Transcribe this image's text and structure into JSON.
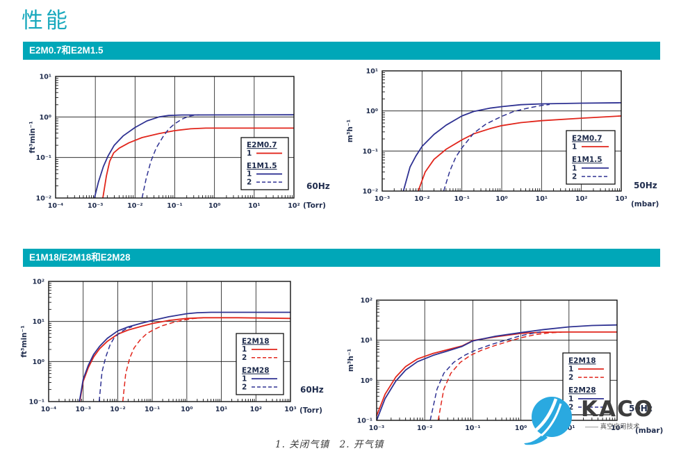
{
  "page_title": "性能",
  "sections": [
    {
      "banner": "E2M0.7和E2M1.5"
    },
    {
      "banner": "E1M18/E2M18和E2M28"
    }
  ],
  "footnote": "1. 关闭气镇　2. 开气镇",
  "logo": {
    "name": "KACO",
    "tagline": "—— 真空应用技术"
  },
  "colors": {
    "accent": "#00a7b8",
    "title": "#1aa9bd",
    "curve_red": "#e1251b",
    "curve_blue": "#2e3192",
    "axis_text": "#1f2c4d"
  },
  "chart_data": [
    {
      "type": "line",
      "id": "e2m07-e1m15-60hz",
      "name": "E2M0.7 / E1M1.5 pumping speed, 60Hz",
      "ylabel": "ft³min⁻¹",
      "x_unit": "(Torr)",
      "freq": "60Hz",
      "x_log_range": [
        -4,
        2
      ],
      "y_log_range": [
        -2,
        1
      ],
      "grid": true,
      "x_tick_labels": [
        "10⁻⁴",
        "10⁻³",
        "10⁻²",
        "10⁻¹",
        "10⁰",
        "10¹",
        "10²"
      ],
      "y_tick_labels": [
        "10⁻²",
        "10⁻¹",
        "10⁰",
        "10¹"
      ],
      "legend": {
        "groups": [
          {
            "title": "E2M0.7",
            "items": [
              {
                "label": "1",
                "series": 0
              }
            ]
          },
          {
            "title": "E1M1.5",
            "items": [
              {
                "label": "1",
                "series": 1
              },
              {
                "label": "2",
                "series": 2
              }
            ]
          }
        ]
      },
      "series": [
        {
          "name": "E2M0.7-1",
          "color": "#e1251b",
          "dashed": false,
          "points": [
            [
              0.00155,
              0.01
            ],
            [
              0.0019,
              0.035
            ],
            [
              0.0023,
              0.08
            ],
            [
              0.0029,
              0.13
            ],
            [
              0.004,
              0.17
            ],
            [
              0.007,
              0.23
            ],
            [
              0.015,
              0.31
            ],
            [
              0.04,
              0.39
            ],
            [
              0.1,
              0.46
            ],
            [
              0.25,
              0.51
            ],
            [
              0.6,
              0.53
            ],
            [
              100,
              0.53
            ]
          ]
        },
        {
          "name": "E1M1.5-1",
          "color": "#2e3192",
          "dashed": false,
          "points": [
            [
              0.00095,
              0.01
            ],
            [
              0.0012,
              0.025
            ],
            [
              0.0016,
              0.06
            ],
            [
              0.0021,
              0.11
            ],
            [
              0.003,
              0.2
            ],
            [
              0.005,
              0.34
            ],
            [
              0.01,
              0.55
            ],
            [
              0.02,
              0.8
            ],
            [
              0.04,
              1.0
            ],
            [
              0.07,
              1.09
            ],
            [
              0.15,
              1.12
            ],
            [
              100,
              1.13
            ]
          ]
        },
        {
          "name": "E1M1.5-2",
          "color": "#2e3192",
          "dashed": true,
          "points": [
            [
              0.015,
              0.01
            ],
            [
              0.019,
              0.03
            ],
            [
              0.025,
              0.08
            ],
            [
              0.034,
              0.17
            ],
            [
              0.05,
              0.32
            ],
            [
              0.07,
              0.5
            ],
            [
              0.1,
              0.68
            ],
            [
              0.15,
              0.88
            ],
            [
              0.22,
              1.03
            ],
            [
              0.32,
              1.11
            ],
            [
              0.42,
              1.13
            ]
          ]
        }
      ]
    },
    {
      "type": "line",
      "id": "e2m07-e1m15-50hz",
      "name": "E2M0.7 / E1M1.5 pumping speed, 50Hz",
      "ylabel": "m³h⁻¹",
      "x_unit": "(mbar)",
      "freq": "50Hz",
      "x_log_range": [
        -3,
        3
      ],
      "y_log_range": [
        -2,
        1
      ],
      "grid": true,
      "x_tick_labels": [
        "10⁻³",
        "10⁻²",
        "10⁻¹",
        "10⁰",
        "10¹",
        "10²",
        "10³"
      ],
      "y_tick_labels": [
        "10⁻²",
        "10⁻¹",
        "10⁰",
        "10¹"
      ],
      "legend": {
        "groups": [
          {
            "title": "E2M0.7",
            "items": [
              {
                "label": "1",
                "series": 0
              }
            ]
          },
          {
            "title": "E1M1.5",
            "items": [
              {
                "label": "1",
                "series": 1
              },
              {
                "label": "2",
                "series": 2
              }
            ]
          }
        ]
      },
      "series": [
        {
          "name": "E2M0.7-1",
          "color": "#e1251b",
          "dashed": false,
          "points": [
            [
              0.008,
              0.01
            ],
            [
              0.012,
              0.03
            ],
            [
              0.02,
              0.062
            ],
            [
              0.04,
              0.11
            ],
            [
              0.1,
              0.19
            ],
            [
              0.2,
              0.27
            ],
            [
              0.5,
              0.36
            ],
            [
              1,
              0.43
            ],
            [
              3,
              0.51
            ],
            [
              10,
              0.57
            ],
            [
              100,
              0.66
            ],
            [
              1000,
              0.75
            ]
          ]
        },
        {
          "name": "E1M1.5-1",
          "color": "#2e3192",
          "dashed": false,
          "points": [
            [
              0.0034,
              0.01
            ],
            [
              0.005,
              0.04
            ],
            [
              0.007,
              0.075
            ],
            [
              0.01,
              0.13
            ],
            [
              0.02,
              0.26
            ],
            [
              0.04,
              0.44
            ],
            [
              0.1,
              0.75
            ],
            [
              0.2,
              0.97
            ],
            [
              0.5,
              1.17
            ],
            [
              1,
              1.28
            ],
            [
              3,
              1.43
            ],
            [
              10,
              1.5
            ],
            [
              100,
              1.56
            ],
            [
              1000,
              1.6
            ]
          ]
        },
        {
          "name": "E1M1.5-2",
          "color": "#2e3192",
          "dashed": true,
          "points": [
            [
              0.035,
              0.01
            ],
            [
              0.05,
              0.032
            ],
            [
              0.07,
              0.07
            ],
            [
              0.1,
              0.12
            ],
            [
              0.2,
              0.28
            ],
            [
              0.4,
              0.47
            ],
            [
              1,
              0.73
            ],
            [
              2,
              0.97
            ],
            [
              5,
              1.2
            ],
            [
              10,
              1.37
            ],
            [
              16,
              1.45
            ]
          ]
        }
      ]
    },
    {
      "type": "line",
      "id": "e2m18-e2m28-60hz",
      "name": "E2M18 / E2M28 pumping speed, 60Hz",
      "ylabel": "ft³min⁻¹",
      "x_unit": "(Torr)",
      "freq": "60Hz",
      "x_log_range": [
        -4,
        3
      ],
      "y_log_range": [
        -1,
        2
      ],
      "grid": true,
      "x_tick_labels": [
        "10⁻⁴",
        "10⁻³",
        "10⁻²",
        "10⁻¹",
        "10⁰",
        "10¹",
        "10²",
        "10³"
      ],
      "y_tick_labels": [
        "10⁻¹",
        "10⁰",
        "10¹",
        "10²"
      ],
      "legend": {
        "groups": [
          {
            "title": "E2M18",
            "items": [
              {
                "label": "1",
                "series": 0
              },
              {
                "label": "2",
                "series": 1
              }
            ]
          },
          {
            "title": "E2M28",
            "items": [
              {
                "label": "1",
                "series": 2
              },
              {
                "label": "2",
                "series": 3
              }
            ]
          }
        ]
      },
      "series": [
        {
          "name": "E2M18-1",
          "color": "#e1251b",
          "dashed": false,
          "points": [
            [
              0.0008,
              0.1
            ],
            [
              0.001,
              0.32
            ],
            [
              0.0014,
              0.7
            ],
            [
              0.002,
              1.3
            ],
            [
              0.003,
              2.1
            ],
            [
              0.005,
              3.2
            ],
            [
              0.01,
              4.8
            ],
            [
              0.02,
              6.1
            ],
            [
              0.05,
              7.6
            ],
            [
              0.1,
              8.9
            ],
            [
              0.3,
              10.6
            ],
            [
              1,
              11.9
            ],
            [
              3,
              12.4
            ],
            [
              30,
              12.4
            ],
            [
              1000,
              11.9
            ]
          ]
        },
        {
          "name": "E2M18-2",
          "color": "#e1251b",
          "dashed": true,
          "points": [
            [
              0.014,
              0.1
            ],
            [
              0.017,
              0.5
            ],
            [
              0.022,
              1.2
            ],
            [
              0.03,
              2.2
            ],
            [
              0.045,
              3.5
            ],
            [
              0.07,
              5
            ],
            [
              0.12,
              6.5
            ],
            [
              0.2,
              7.9
            ],
            [
              0.4,
              9.4
            ],
            [
              0.7,
              10.6
            ],
            [
              1.5,
              11.8
            ],
            [
              3,
              12.4
            ]
          ]
        },
        {
          "name": "E2M28-1",
          "color": "#2e3192",
          "dashed": false,
          "points": [
            [
              0.00078,
              0.1
            ],
            [
              0.001,
              0.36
            ],
            [
              0.0014,
              0.8
            ],
            [
              0.002,
              1.5
            ],
            [
              0.003,
              2.4
            ],
            [
              0.005,
              3.8
            ],
            [
              0.01,
              5.8
            ],
            [
              0.02,
              7.3
            ],
            [
              0.05,
              9.1
            ],
            [
              0.1,
              10.6
            ],
            [
              0.3,
              13.1
            ],
            [
              1,
              15.6
            ],
            [
              2,
              16.5
            ],
            [
              5,
              16.9
            ],
            [
              1000,
              16.9
            ]
          ]
        },
        {
          "name": "E2M28-2",
          "color": "#2e3192",
          "dashed": true,
          "points": [
            [
              0.0029,
              0.1
            ],
            [
              0.0035,
              0.55
            ],
            [
              0.0045,
              1.3
            ],
            [
              0.006,
              2.6
            ],
            [
              0.008,
              4
            ],
            [
              0.012,
              5.4
            ],
            [
              0.018,
              6.6
            ],
            [
              0.026,
              7.4
            ]
          ]
        }
      ]
    },
    {
      "type": "line",
      "id": "e2m18-e2m28-50hz",
      "name": "E2M18 / E2M28 pumping speed, 50Hz",
      "ylabel": "m³h⁻¹",
      "x_unit": "(mbar)",
      "freq": "50Hz",
      "x_log_range": [
        -3,
        2
      ],
      "y_log_range": [
        -1,
        2
      ],
      "grid": true,
      "x_tick_labels": [
        "10⁻³",
        "10⁻²",
        "10⁻¹",
        "10⁰",
        "10¹",
        "10²"
      ],
      "y_tick_labels": [
        "10⁻¹",
        "10⁰",
        "10¹",
        "10²"
      ],
      "legend": {
        "groups": [
          {
            "title": "E2M18",
            "items": [
              {
                "label": "1",
                "series": 0
              },
              {
                "label": "2",
                "series": 1
              }
            ]
          },
          {
            "title": "E2M28",
            "items": [
              {
                "label": "1",
                "series": 2
              },
              {
                "label": "2",
                "series": 3
              }
            ]
          }
        ]
      },
      "series": [
        {
          "name": "E2M18-1",
          "color": "#e1251b",
          "dashed": false,
          "points": [
            [
              0.001,
              0.13
            ],
            [
              0.0015,
              0.45
            ],
            [
              0.0025,
              1.2
            ],
            [
              0.004,
              2.2
            ],
            [
              0.007,
              3.4
            ],
            [
              0.015,
              4.7
            ],
            [
              0.03,
              5.8
            ],
            [
              0.06,
              7.2
            ],
            [
              0.1,
              9.8
            ],
            [
              0.3,
              12.2
            ],
            [
              1,
              14.8
            ],
            [
              3,
              15.8
            ],
            [
              10,
              16
            ],
            [
              100,
              16
            ]
          ]
        },
        {
          "name": "E2M18-2",
          "color": "#e1251b",
          "dashed": true,
          "points": [
            [
              0.019,
              0.1
            ],
            [
              0.025,
              0.6
            ],
            [
              0.035,
              1.5
            ],
            [
              0.055,
              2.8
            ],
            [
              0.09,
              4.2
            ],
            [
              0.15,
              5.6
            ],
            [
              0.3,
              7.5
            ],
            [
              0.6,
              9.6
            ],
            [
              1,
              11.5
            ],
            [
              2,
              13.8
            ],
            [
              4,
              15.3
            ],
            [
              7,
              15.9
            ]
          ]
        },
        {
          "name": "E2M28-1",
          "color": "#2e3192",
          "dashed": false,
          "points": [
            [
              0.001,
              0.1
            ],
            [
              0.0015,
              0.35
            ],
            [
              0.0025,
              0.95
            ],
            [
              0.004,
              1.8
            ],
            [
              0.007,
              2.9
            ],
            [
              0.015,
              4.2
            ],
            [
              0.03,
              5.4
            ],
            [
              0.06,
              7
            ],
            [
              0.1,
              9.6
            ],
            [
              0.3,
              12.6
            ],
            [
              1,
              15.5
            ],
            [
              3,
              18.5
            ],
            [
              10,
              21.5
            ],
            [
              30,
              23.3
            ],
            [
              100,
              24
            ]
          ]
        },
        {
          "name": "E2M28-2",
          "color": "#2e3192",
          "dashed": true,
          "points": [
            [
              0.013,
              0.1
            ],
            [
              0.018,
              0.6
            ],
            [
              0.025,
              1.5
            ],
            [
              0.04,
              2.8
            ],
            [
              0.07,
              4.3
            ],
            [
              0.12,
              5.8
            ],
            [
              0.25,
              7.9
            ],
            [
              0.5,
              10.2
            ],
            [
              1,
              13
            ],
            [
              1.8,
              15
            ],
            [
              2.6,
              16.2
            ]
          ]
        }
      ]
    }
  ]
}
